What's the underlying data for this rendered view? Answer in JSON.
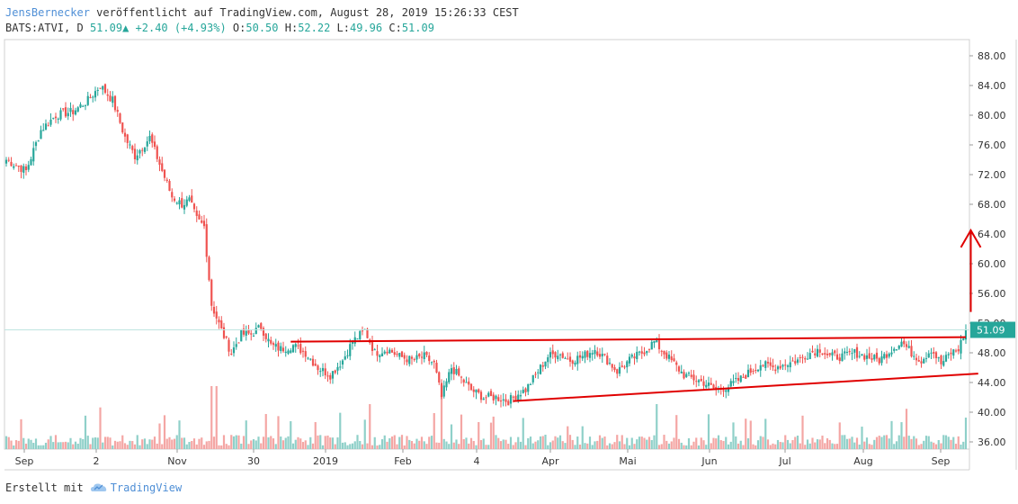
{
  "header": {
    "author": "JensBernecker",
    "published_text": "veröffentlicht auf TradingView.com, August 28, 2019 15:26:33 CEST",
    "symbol": "BATS:ATVI, D",
    "last": "51.09",
    "change": "+2.40 (+4.93%)",
    "o_label": "O:",
    "o_value": "50.50",
    "h_label": "H:",
    "h_value": "52.22",
    "l_label": "L:",
    "l_value": "49.96",
    "c_label": "C:",
    "c_value": "51.09"
  },
  "footer": {
    "created_with": "Erstellt mit",
    "brand": "TradingView"
  },
  "colors": {
    "up": "#26a69a",
    "down": "#ef5350",
    "up_volume": "#8fd0c9",
    "down_volume": "#f4a6a4",
    "trendline": "#e00000",
    "price_label_bg": "#26a69a"
  },
  "chart_data": {
    "type": "candlestick",
    "symbol": "BATS:ATVI",
    "interval": "D",
    "x_ticks": [
      "Sep",
      "2",
      "Nov",
      "30",
      "2019",
      "Feb",
      "4",
      "Apr",
      "Mai",
      "Jun",
      "Jul",
      "Aug",
      "Sep"
    ],
    "y_ticks": [
      "88.00",
      "84.00",
      "80.00",
      "76.00",
      "72.00",
      "68.00",
      "64.00",
      "60.00",
      "56.00",
      "52.00",
      "48.00",
      "44.00",
      "40.00",
      "36.00"
    ],
    "ylim": [
      35.5,
      90.5
    ],
    "last_price": 51.09,
    "close_path": [
      [
        0,
        74.0
      ],
      [
        8,
        72.5
      ],
      [
        14,
        78
      ],
      [
        20,
        80
      ],
      [
        27,
        80.5
      ],
      [
        33,
        82
      ],
      [
        38,
        84
      ],
      [
        43,
        82
      ],
      [
        48,
        77
      ],
      [
        52,
        74.5
      ],
      [
        58,
        77
      ],
      [
        63,
        72.5
      ],
      [
        67,
        69
      ],
      [
        71,
        68
      ],
      [
        74,
        68.5
      ],
      [
        77,
        66
      ],
      [
        80,
        65
      ],
      [
        83,
        54.5
      ],
      [
        87,
        51
      ],
      [
        91,
        48
      ],
      [
        95,
        50.5
      ],
      [
        99,
        50.5
      ],
      [
        103,
        51.5
      ],
      [
        107,
        49
      ],
      [
        111,
        48.5
      ],
      [
        116,
        49
      ],
      [
        121,
        48
      ],
      [
        126,
        46
      ],
      [
        131,
        45
      ],
      [
        136,
        47
      ],
      [
        140,
        49.5
      ],
      [
        145,
        51
      ],
      [
        149,
        48
      ],
      [
        154,
        48.5
      ],
      [
        159,
        47.5
      ],
      [
        164,
        47
      ],
      [
        169,
        47.5
      ],
      [
        173,
        46.5
      ],
      [
        176,
        42
      ],
      [
        180,
        46
      ],
      [
        184,
        44.5
      ],
      [
        188,
        43
      ],
      [
        193,
        42
      ],
      [
        198,
        42
      ],
      [
        203,
        41.5
      ],
      [
        207,
        42.5
      ],
      [
        210,
        43
      ],
      [
        214,
        45
      ],
      [
        219,
        47.5
      ],
      [
        223,
        48
      ],
      [
        228,
        47
      ],
      [
        233,
        47.5
      ],
      [
        238,
        48.5
      ],
      [
        243,
        47
      ],
      [
        247,
        45.5
      ],
      [
        252,
        47
      ],
      [
        257,
        48
      ],
      [
        262,
        49.5
      ],
      [
        266,
        48
      ],
      [
        270,
        46.5
      ],
      [
        274,
        45
      ],
      [
        278,
        44.5
      ],
      [
        282,
        44
      ],
      [
        287,
        43
      ],
      [
        292,
        43.5
      ],
      [
        297,
        44.5
      ],
      [
        301,
        45.5
      ],
      [
        305,
        46.5
      ],
      [
        310,
        46
      ],
      [
        315,
        46.5
      ],
      [
        320,
        47
      ],
      [
        325,
        48
      ],
      [
        329,
        48.5
      ],
      [
        333,
        47.5
      ],
      [
        338,
        47.5
      ],
      [
        343,
        48
      ],
      [
        348,
        47.5
      ],
      [
        353,
        47
      ],
      [
        358,
        48.5
      ],
      [
        362,
        49.5
      ],
      [
        366,
        48
      ],
      [
        370,
        47
      ],
      [
        374,
        48.5
      ],
      [
        378,
        46.5
      ],
      [
        382,
        48
      ],
      [
        385,
        48.5
      ],
      [
        388,
        51.09
      ]
    ],
    "annotations": [
      {
        "type": "trendline",
        "start": [
          115,
          49.5
        ],
        "end": [
          388,
          50.1
        ]
      },
      {
        "type": "trendline",
        "start": [
          205,
          41.5
        ],
        "end": [
          393,
          45.2
        ]
      },
      {
        "type": "arrow",
        "start": [
          390,
          53.5
        ],
        "end": [
          390,
          64.5
        ]
      }
    ]
  }
}
